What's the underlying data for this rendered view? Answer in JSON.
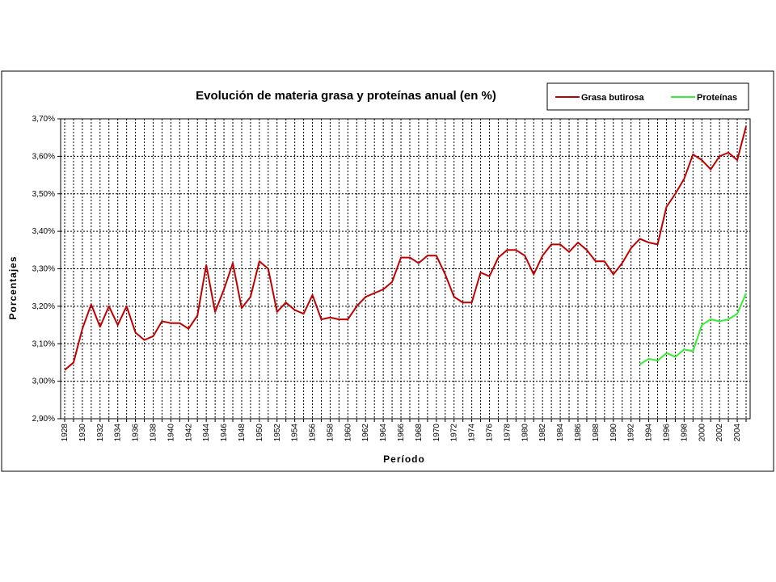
{
  "chart_data": {
    "type": "line",
    "title": "Evolución de materia grasa y proteínas anual (en %)",
    "x_label": "Período",
    "y_label": "Porcentajes",
    "categories": [
      "1928",
      null,
      "1930",
      null,
      "1932",
      null,
      "1934",
      null,
      "1936",
      null,
      "1938",
      null,
      "1940",
      null,
      "1942",
      null,
      "1944",
      null,
      "1946",
      null,
      "1948",
      null,
      "1950",
      null,
      "1952",
      null,
      "1954",
      null,
      "1956",
      null,
      "1958",
      null,
      "1960",
      null,
      "1962",
      null,
      "1964",
      null,
      "1966",
      null,
      "1968",
      null,
      "1970",
      null,
      "1972",
      null,
      "1974",
      null,
      "1976",
      null,
      "1978",
      null,
      "1980",
      null,
      "1982",
      null,
      "1984",
      null,
      "1986",
      null,
      "1988",
      null,
      "1990",
      null,
      "1992",
      null,
      "1994",
      null,
      "1996",
      null,
      "1998",
      null,
      "2000",
      null,
      "2002",
      null,
      "2004",
      null
    ],
    "series": [
      {
        "name": "Grasa butirosa",
        "color": "#c00000",
        "values": [
          3.03,
          3.05,
          3.14,
          3.205,
          3.145,
          3.2,
          3.15,
          3.2,
          3.13,
          3.11,
          3.12,
          3.16,
          3.155,
          3.155,
          3.14,
          3.175,
          3.31,
          3.185,
          3.245,
          3.315,
          3.195,
          3.225,
          3.32,
          3.3,
          3.185,
          3.21,
          3.19,
          3.18,
          3.23,
          3.165,
          3.17,
          3.165,
          3.165,
          3.2,
          3.225,
          3.235,
          3.245,
          3.265,
          3.33,
          3.33,
          3.315,
          3.335,
          3.335,
          3.285,
          3.225,
          3.21,
          3.21,
          3.29,
          3.28,
          3.33,
          3.35,
          3.35,
          3.335,
          3.285,
          3.335,
          3.365,
          3.365,
          3.345,
          3.37,
          3.35,
          3.32,
          3.32,
          3.285,
          3.315,
          3.355,
          3.38,
          3.37,
          3.365,
          3.465,
          3.5,
          3.54,
          3.605,
          3.59,
          3.565,
          3.6,
          3.61,
          3.59,
          3.68
        ]
      },
      {
        "name": "Proteínas",
        "color": "#33ee33",
        "values": [
          null,
          null,
          null,
          null,
          null,
          null,
          null,
          null,
          null,
          null,
          null,
          null,
          null,
          null,
          null,
          null,
          null,
          null,
          null,
          null,
          null,
          null,
          null,
          null,
          null,
          null,
          null,
          null,
          null,
          null,
          null,
          null,
          null,
          null,
          null,
          null,
          null,
          null,
          null,
          null,
          null,
          null,
          null,
          null,
          null,
          null,
          null,
          null,
          null,
          null,
          null,
          null,
          null,
          null,
          null,
          null,
          null,
          null,
          null,
          null,
          null,
          null,
          null,
          null,
          null,
          3.045,
          3.06,
          3.055,
          3.075,
          3.065,
          3.085,
          3.08,
          3.15,
          3.165,
          3.16,
          3.165,
          3.18,
          3.235
        ]
      }
    ],
    "ylim": [
      2.9,
      3.7
    ],
    "yticks": [
      {
        "value": 2.9,
        "label": "2,90%"
      },
      {
        "value": 3.0,
        "label": "3,00%"
      },
      {
        "value": 3.1,
        "label": "3,10%"
      },
      {
        "value": 3.2,
        "label": "3,20%"
      },
      {
        "value": 3.3,
        "label": "3,30%"
      },
      {
        "value": 3.4,
        "label": "3,40%"
      },
      {
        "value": 3.5,
        "label": "3,50%"
      },
      {
        "value": 3.6,
        "label": "3,60%"
      },
      {
        "value": 3.7,
        "label": "3,70%"
      }
    ],
    "grid": true,
    "legend": "top-right"
  }
}
